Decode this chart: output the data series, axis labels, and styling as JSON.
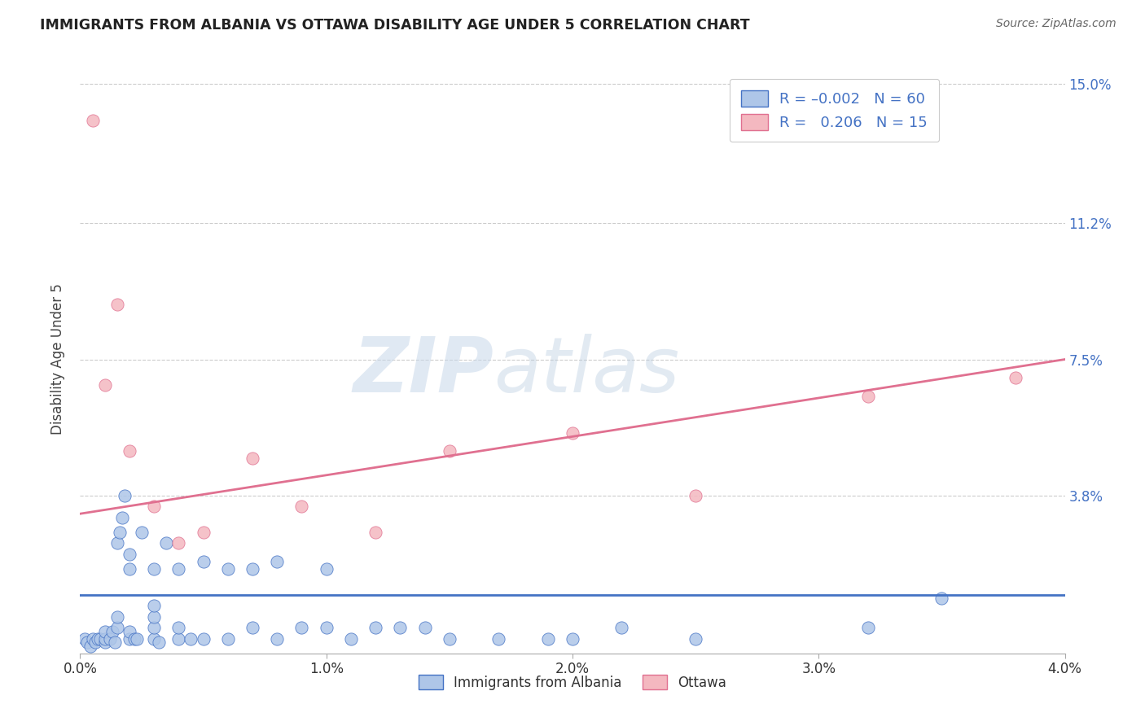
{
  "title": "IMMIGRANTS FROM ALBANIA VS OTTAWA DISABILITY AGE UNDER 5 CORRELATION CHART",
  "source": "Source: ZipAtlas.com",
  "ylabel": "Disability Age Under 5",
  "legend_label_1": "Immigrants from Albania",
  "legend_label_2": "Ottawa",
  "R1": -0.002,
  "N1": 60,
  "R2": 0.206,
  "N2": 15,
  "color1": "#aec6e8",
  "color2": "#f4b8c0",
  "line_color1": "#4472c4",
  "line_color2": "#e07090",
  "xlim": [
    0.0,
    0.04
  ],
  "ylim": [
    -0.005,
    0.155
  ],
  "ytick_labels": [
    "3.8%",
    "7.5%",
    "11.2%",
    "15.0%"
  ],
  "ytick_values": [
    0.038,
    0.075,
    0.112,
    0.15
  ],
  "xtick_labels": [
    "0.0%",
    "1.0%",
    "2.0%",
    "3.0%",
    "4.0%"
  ],
  "xtick_values": [
    0.0,
    0.01,
    0.02,
    0.03,
    0.04
  ],
  "watermark_zip": "ZIP",
  "watermark_atlas": "atlas",
  "blue_line_y0": 0.011,
  "blue_line_y1": 0.011,
  "pink_line_y0": 0.033,
  "pink_line_y1": 0.075,
  "blue_x": [
    0.0002,
    0.0003,
    0.0004,
    0.0005,
    0.0006,
    0.0007,
    0.0008,
    0.001,
    0.001,
    0.001,
    0.0012,
    0.0013,
    0.0014,
    0.0015,
    0.0015,
    0.0015,
    0.0016,
    0.0017,
    0.0018,
    0.002,
    0.002,
    0.002,
    0.002,
    0.0022,
    0.0023,
    0.0025,
    0.003,
    0.003,
    0.003,
    0.003,
    0.003,
    0.0032,
    0.0035,
    0.004,
    0.004,
    0.004,
    0.0045,
    0.005,
    0.005,
    0.006,
    0.006,
    0.007,
    0.007,
    0.008,
    0.008,
    0.009,
    0.01,
    0.01,
    0.011,
    0.012,
    0.013,
    0.014,
    0.015,
    0.017,
    0.019,
    0.02,
    0.022,
    0.025,
    0.032,
    0.035
  ],
  "blue_y": [
    -0.001,
    -0.002,
    -0.003,
    -0.001,
    -0.002,
    -0.001,
    -0.001,
    -0.002,
    -0.001,
    0.001,
    -0.001,
    0.001,
    -0.002,
    0.002,
    0.005,
    0.025,
    0.028,
    0.032,
    0.038,
    -0.001,
    0.001,
    0.018,
    0.022,
    -0.001,
    -0.001,
    0.028,
    -0.001,
    0.002,
    0.005,
    0.008,
    0.018,
    -0.002,
    0.025,
    -0.001,
    0.002,
    0.018,
    -0.001,
    -0.001,
    0.02,
    -0.001,
    0.018,
    0.002,
    0.018,
    -0.001,
    0.02,
    0.002,
    0.002,
    0.018,
    -0.001,
    0.002,
    0.002,
    0.002,
    -0.001,
    -0.001,
    -0.001,
    -0.001,
    0.002,
    -0.001,
    0.002,
    0.01
  ],
  "pink_x": [
    0.0005,
    0.001,
    0.0015,
    0.002,
    0.003,
    0.004,
    0.005,
    0.007,
    0.009,
    0.012,
    0.015,
    0.02,
    0.025,
    0.032,
    0.038
  ],
  "pink_y": [
    0.14,
    0.068,
    0.09,
    0.05,
    0.035,
    0.025,
    0.028,
    0.048,
    0.035,
    0.028,
    0.05,
    0.055,
    0.038,
    0.065,
    0.07
  ]
}
